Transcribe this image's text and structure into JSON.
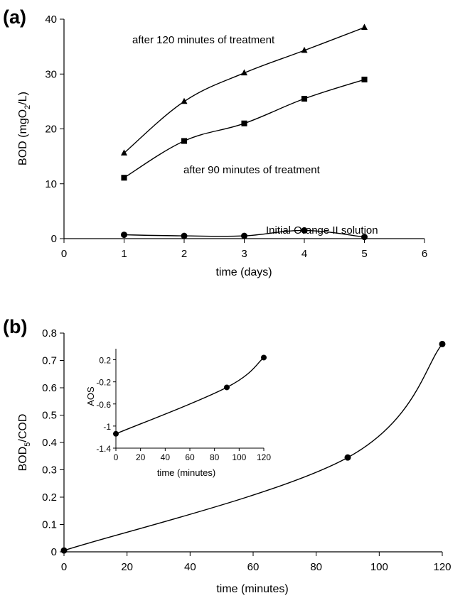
{
  "chart_data": [
    {
      "panel": "(a)",
      "type": "line",
      "xlabel": "time (days)",
      "ylabel": "BOD (mgO2/L)",
      "ylabel_parts": [
        "BOD (mgO",
        "2",
        "/L)"
      ],
      "xlim": [
        0,
        6
      ],
      "ylim": [
        0,
        40
      ],
      "xticks": [
        "0",
        "1",
        "2",
        "3",
        "4",
        "5",
        "6"
      ],
      "yticks": [
        "0",
        "10",
        "20",
        "30",
        "40"
      ],
      "grid": false,
      "series": [
        {
          "name": "after 120 minutes of treatment",
          "marker": "triangle",
          "x": [
            1,
            2,
            3,
            4,
            5
          ],
          "y": [
            15.6,
            25.0,
            30.2,
            34.3,
            38.5
          ]
        },
        {
          "name": "after 90 minutes of treatment",
          "marker": "square",
          "x": [
            1,
            2,
            3,
            4,
            5
          ],
          "y": [
            11.1,
            17.8,
            21.0,
            25.5,
            29.0
          ]
        },
        {
          "name": "Initial Orange II solution",
          "marker": "circle",
          "x": [
            1,
            2,
            3,
            4,
            5
          ],
          "y": [
            0.7,
            0.5,
            0.5,
            1.5,
            0.3
          ]
        }
      ]
    },
    {
      "panel": "(b)",
      "type": "line",
      "xlabel": "time (minutes)",
      "ylabel": "BOD5/COD",
      "ylabel_parts": [
        "BOD",
        "5",
        "/COD"
      ],
      "xlim": [
        0,
        120
      ],
      "ylim": [
        0,
        0.8
      ],
      "xticks": [
        "0",
        "20",
        "40",
        "60",
        "80",
        "100",
        "120"
      ],
      "yticks": [
        "0",
        "0.1",
        "0.2",
        "0.3",
        "0.4",
        "0.5",
        "0.6",
        "0.7",
        "0.8"
      ],
      "grid": false,
      "series": [
        {
          "marker": "circle",
          "x": [
            0,
            90,
            120
          ],
          "y": [
            0.005,
            0.345,
            0.76
          ]
        }
      ],
      "inset": {
        "type": "line",
        "xlabel": "time (minutes)",
        "ylabel": "AOS",
        "xlim": [
          0,
          120
        ],
        "ylim": [
          -1.4,
          0.4
        ],
        "xticks": [
          "0",
          "20",
          "40",
          "60",
          "80",
          "100",
          "120"
        ],
        "yticks": [
          "-1.4",
          "-1",
          "-0.6",
          "-0.2",
          "0.2"
        ],
        "series": [
          {
            "marker": "circle",
            "x": [
              0,
              90,
              120
            ],
            "y": [
              -1.14,
              -0.3,
              0.24
            ]
          }
        ]
      }
    }
  ]
}
